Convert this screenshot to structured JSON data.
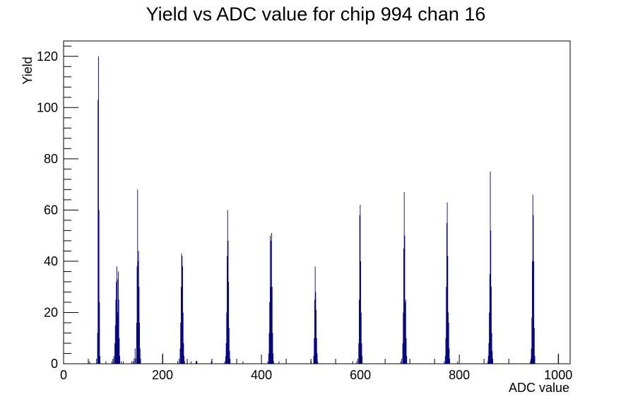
{
  "chart_data": {
    "type": "bar",
    "title": "Yield vs ADC value for chip 994 chan 16",
    "xlabel": "ADC value",
    "ylabel": "Yield",
    "xlim": [
      0,
      1024
    ],
    "ylim": [
      0,
      126
    ],
    "xticks": [
      0,
      200,
      400,
      600,
      800,
      1000
    ],
    "yticks": [
      0,
      20,
      40,
      60,
      80,
      100,
      120
    ],
    "grid": false,
    "legend": "none",
    "color": "#000080",
    "bin_width": 1,
    "bins": [
      {
        "x": 52,
        "y": 1
      },
      {
        "x": 66,
        "y": 2
      },
      {
        "x": 68,
        "y": 12
      },
      {
        "x": 69,
        "y": 103
      },
      {
        "x": 70,
        "y": 120
      },
      {
        "x": 71,
        "y": 60
      },
      {
        "x": 72,
        "y": 24
      },
      {
        "x": 73,
        "y": 3
      },
      {
        "x": 85,
        "y": 1
      },
      {
        "x": 97,
        "y": 1
      },
      {
        "x": 101,
        "y": 3
      },
      {
        "x": 103,
        "y": 8
      },
      {
        "x": 104,
        "y": 15
      },
      {
        "x": 105,
        "y": 25
      },
      {
        "x": 106,
        "y": 32
      },
      {
        "x": 107,
        "y": 38
      },
      {
        "x": 108,
        "y": 33
      },
      {
        "x": 109,
        "y": 20
      },
      {
        "x": 110,
        "y": 36
      },
      {
        "x": 111,
        "y": 25
      },
      {
        "x": 112,
        "y": 10
      },
      {
        "x": 113,
        "y": 3
      },
      {
        "x": 116,
        "y": 1
      },
      {
        "x": 120,
        "y": 1
      },
      {
        "x": 137,
        "y": 1
      },
      {
        "x": 140,
        "y": 1
      },
      {
        "x": 142,
        "y": 2
      },
      {
        "x": 144,
        "y": 6
      },
      {
        "x": 145,
        "y": 2
      },
      {
        "x": 147,
        "y": 16
      },
      {
        "x": 148,
        "y": 38
      },
      {
        "x": 149,
        "y": 68
      },
      {
        "x": 150,
        "y": 40
      },
      {
        "x": 151,
        "y": 44
      },
      {
        "x": 152,
        "y": 30
      },
      {
        "x": 153,
        "y": 16
      },
      {
        "x": 154,
        "y": 6
      },
      {
        "x": 155,
        "y": 2
      },
      {
        "x": 200,
        "y": 4
      },
      {
        "x": 230,
        "y": 1
      },
      {
        "x": 233,
        "y": 2
      },
      {
        "x": 235,
        "y": 6
      },
      {
        "x": 236,
        "y": 16
      },
      {
        "x": 237,
        "y": 30
      },
      {
        "x": 238,
        "y": 43
      },
      {
        "x": 239,
        "y": 42
      },
      {
        "x": 240,
        "y": 38
      },
      {
        "x": 241,
        "y": 20
      },
      {
        "x": 242,
        "y": 8
      },
      {
        "x": 243,
        "y": 3
      },
      {
        "x": 244,
        "y": 1
      },
      {
        "x": 257,
        "y": 1
      },
      {
        "x": 267,
        "y": 1
      },
      {
        "x": 268,
        "y": 1
      },
      {
        "x": 269,
        "y": 1
      },
      {
        "x": 298,
        "y": 1
      },
      {
        "x": 325,
        "y": 1
      },
      {
        "x": 327,
        "y": 3
      },
      {
        "x": 328,
        "y": 8
      },
      {
        "x": 329,
        "y": 20
      },
      {
        "x": 330,
        "y": 42
      },
      {
        "x": 331,
        "y": 60
      },
      {
        "x": 332,
        "y": 48
      },
      {
        "x": 333,
        "y": 32
      },
      {
        "x": 334,
        "y": 14
      },
      {
        "x": 335,
        "y": 5
      },
      {
        "x": 336,
        "y": 2
      },
      {
        "x": 362,
        "y": 1
      },
      {
        "x": 412,
        "y": 1
      },
      {
        "x": 414,
        "y": 4
      },
      {
        "x": 415,
        "y": 12
      },
      {
        "x": 416,
        "y": 24
      },
      {
        "x": 417,
        "y": 50
      },
      {
        "x": 418,
        "y": 30
      },
      {
        "x": 419,
        "y": 48
      },
      {
        "x": 420,
        "y": 51
      },
      {
        "x": 421,
        "y": 30
      },
      {
        "x": 422,
        "y": 12
      },
      {
        "x": 423,
        "y": 4
      },
      {
        "x": 424,
        "y": 1
      },
      {
        "x": 435,
        "y": 1
      },
      {
        "x": 500,
        "y": 1
      },
      {
        "x": 505,
        "y": 3
      },
      {
        "x": 506,
        "y": 10
      },
      {
        "x": 507,
        "y": 25
      },
      {
        "x": 508,
        "y": 38
      },
      {
        "x": 509,
        "y": 28
      },
      {
        "x": 510,
        "y": 21
      },
      {
        "x": 511,
        "y": 10
      },
      {
        "x": 512,
        "y": 4
      },
      {
        "x": 513,
        "y": 1
      },
      {
        "x": 584,
        "y": 1
      },
      {
        "x": 592,
        "y": 1
      },
      {
        "x": 594,
        "y": 2
      },
      {
        "x": 596,
        "y": 8
      },
      {
        "x": 597,
        "y": 25
      },
      {
        "x": 598,
        "y": 58
      },
      {
        "x": 599,
        "y": 62
      },
      {
        "x": 600,
        "y": 40
      },
      {
        "x": 601,
        "y": 20
      },
      {
        "x": 602,
        "y": 8
      },
      {
        "x": 603,
        "y": 3
      },
      {
        "x": 681,
        "y": 1
      },
      {
        "x": 683,
        "y": 2
      },
      {
        "x": 685,
        "y": 8
      },
      {
        "x": 686,
        "y": 20
      },
      {
        "x": 687,
        "y": 45
      },
      {
        "x": 688,
        "y": 67
      },
      {
        "x": 689,
        "y": 50
      },
      {
        "x": 690,
        "y": 24
      },
      {
        "x": 691,
        "y": 25
      },
      {
        "x": 692,
        "y": 10
      },
      {
        "x": 693,
        "y": 3
      },
      {
        "x": 769,
        "y": 1
      },
      {
        "x": 771,
        "y": 3
      },
      {
        "x": 772,
        "y": 10
      },
      {
        "x": 773,
        "y": 30
      },
      {
        "x": 774,
        "y": 55
      },
      {
        "x": 775,
        "y": 63
      },
      {
        "x": 776,
        "y": 42
      },
      {
        "x": 777,
        "y": 20
      },
      {
        "x": 778,
        "y": 16
      },
      {
        "x": 779,
        "y": 6
      },
      {
        "x": 780,
        "y": 2
      },
      {
        "x": 796,
        "y": 1
      },
      {
        "x": 857,
        "y": 1
      },
      {
        "x": 858,
        "y": 3
      },
      {
        "x": 859,
        "y": 8
      },
      {
        "x": 860,
        "y": 20
      },
      {
        "x": 861,
        "y": 35
      },
      {
        "x": 862,
        "y": 75
      },
      {
        "x": 863,
        "y": 52
      },
      {
        "x": 864,
        "y": 30
      },
      {
        "x": 865,
        "y": 12
      },
      {
        "x": 866,
        "y": 5
      },
      {
        "x": 867,
        "y": 2
      },
      {
        "x": 943,
        "y": 1
      },
      {
        "x": 944,
        "y": 2
      },
      {
        "x": 945,
        "y": 6
      },
      {
        "x": 946,
        "y": 18
      },
      {
        "x": 947,
        "y": 40
      },
      {
        "x": 948,
        "y": 66
      },
      {
        "x": 949,
        "y": 58
      },
      {
        "x": 950,
        "y": 40
      },
      {
        "x": 951,
        "y": 14
      },
      {
        "x": 952,
        "y": 3
      },
      {
        "x": 1000,
        "y": 4
      }
    ]
  }
}
